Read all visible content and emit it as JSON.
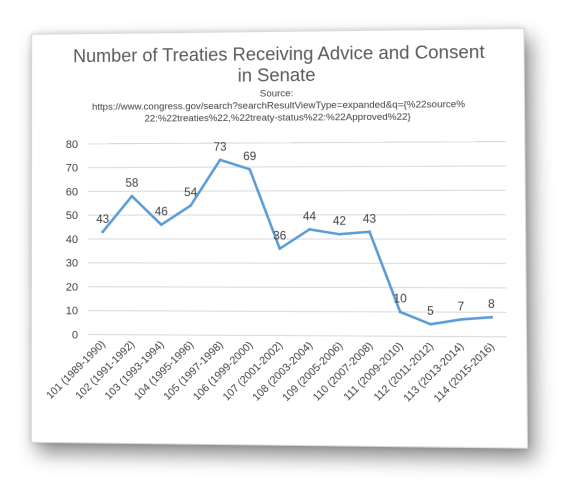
{
  "chart_data": {
    "type": "line",
    "title": "Number of Treaties Receiving Advice and Consent in Senate",
    "title_lines": [
      "Number of Treaties Receiving Advice and Consent",
      "in Senate"
    ],
    "source_lines": [
      "Source:",
      "https://www.congress.gov/search?searchResultViewType=expanded&q={%22source%",
      "22:%22treaties%22,%22treaty-status%22:%22Approved%22}"
    ],
    "xlabel": "",
    "ylabel": "",
    "categories": [
      "101 (1989-1990)",
      "102 (1991-1992)",
      "103 (1993-1994)",
      "104 (1995-1996)",
      "105 (1997-1998)",
      "106 (1999-2000)",
      "107 (2001-2002)",
      "108 (2003-2004)",
      "109 (2005-2006)",
      "110 (2007-2008)",
      "111 (2009-2010)",
      "112 (2011-2012)",
      "113 (2013-2014)",
      "114 (2015-2016)"
    ],
    "series": [
      {
        "values": [
          43,
          58,
          46,
          54,
          73,
          69,
          36,
          44,
          42,
          43,
          10,
          5,
          7,
          8
        ],
        "color": "#5b9bd5"
      }
    ],
    "data_labels": [
      "43",
      "58",
      "46",
      "54",
      "73",
      "69",
      "36",
      "44",
      "42",
      "43",
      "10",
      "5",
      "7",
      "8"
    ],
    "y_ticks": [
      0,
      10,
      20,
      30,
      40,
      50,
      60,
      70,
      80
    ],
    "ylim": [
      0,
      80
    ],
    "grid": true,
    "legend": "none",
    "colors": {
      "line": "#5b9bd5",
      "gridline": "#d9d9d9",
      "text": "#404040",
      "title": "#595959"
    }
  }
}
